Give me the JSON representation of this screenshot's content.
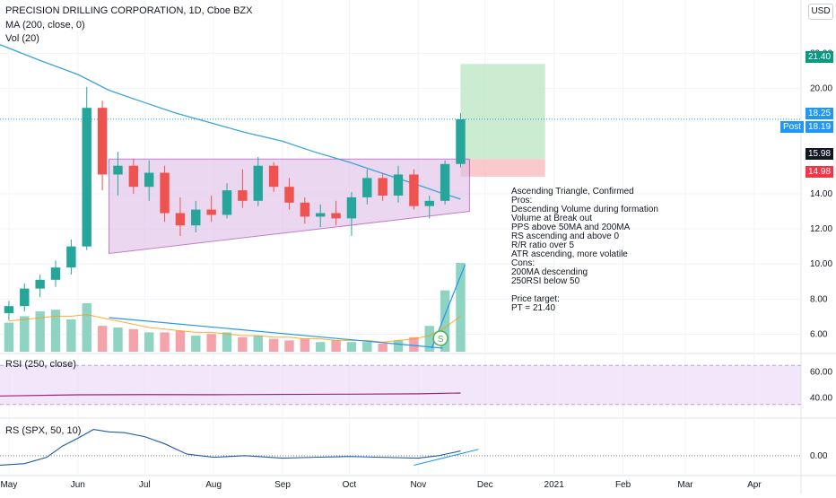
{
  "header": {
    "title": "PRECISION DRILLING CORPORATION, 1D, Cboe BZX",
    "ma_label": "MA (200, close, 0)",
    "vol_label": "Vol (20)",
    "currency": "USD"
  },
  "panes": {
    "rsi_label": "RSI (250, close)",
    "rs_label": "RS (SPX, 50, 10)"
  },
  "price_tags": {
    "target": "21.40",
    "last": "18.25",
    "post_label": "Post",
    "post_value": "18.19",
    "entry": "15.98",
    "stop": "14.98"
  },
  "notes": [
    "Ascending Triangle, Confirmed",
    "Pros:",
    "Descending Volume during formation",
    "Volume at Break out",
    "PPS above 50MA and 200MA",
    "RS ascending and above 0",
    "R/R ratio over 5",
    "ATR ascending, more volatile",
    "Cons:",
    "200MA descending",
    "250RSI below 50",
    "",
    "Price target:",
    "PT = 21.40"
  ],
  "event_marker": "S",
  "chart_data": {
    "type": "candlestick",
    "price_axis": {
      "ticks": [
        6,
        8,
        10,
        12,
        14,
        20,
        22
      ],
      "tick_labels": [
        "6.00",
        "8.00",
        "10.00",
        "12.00",
        "14.00",
        "20.00",
        "22.00"
      ],
      "range": [
        5,
        23
      ]
    },
    "rsi_axis": {
      "ticks": [
        40,
        60
      ],
      "tick_labels": [
        "40.00",
        "60.00"
      ],
      "range": [
        30,
        70
      ],
      "levels": [
        35,
        65
      ]
    },
    "rs_axis": {
      "ticks": [
        0
      ],
      "tick_labels": [
        "0.00"
      ],
      "range": [
        -0.25,
        0.45
      ]
    },
    "time_axis": {
      "labels": [
        "May",
        "Jun",
        "Jul",
        "Aug",
        "Sep",
        "Oct",
        "Nov",
        "Dec",
        "2021",
        "Feb",
        "Mar",
        "Apr"
      ],
      "start": "2020-04-27",
      "end": "2021-04-22"
    },
    "ohlc": [
      [
        "2020-05-01",
        7.2,
        7.9,
        6.8,
        7.6
      ],
      [
        "2020-05-08",
        7.6,
        8.9,
        7.3,
        8.6
      ],
      [
        "2020-05-15",
        8.6,
        9.4,
        8.1,
        9.1
      ],
      [
        "2020-05-22",
        9.1,
        10.2,
        8.7,
        9.8
      ],
      [
        "2020-05-29",
        9.8,
        11.4,
        9.4,
        11.0
      ],
      [
        "2020-06-05",
        11.0,
        20.1,
        10.8,
        18.9
      ],
      [
        "2020-06-12",
        18.9,
        19.3,
        14.2,
        15.1
      ],
      [
        "2020-06-19",
        15.1,
        16.4,
        13.9,
        15.6
      ],
      [
        "2020-06-26",
        15.6,
        16.0,
        14.0,
        14.4
      ],
      [
        "2020-07-03",
        14.4,
        15.9,
        13.6,
        15.2
      ],
      [
        "2020-07-10",
        15.2,
        15.6,
        12.4,
        12.9
      ],
      [
        "2020-07-17",
        12.9,
        13.8,
        11.6,
        12.2
      ],
      [
        "2020-07-24",
        12.2,
        13.6,
        11.8,
        13.1
      ],
      [
        "2020-07-31",
        13.1,
        13.9,
        12.4,
        12.8
      ],
      [
        "2020-08-07",
        12.8,
        14.6,
        12.6,
        14.2
      ],
      [
        "2020-08-14",
        14.2,
        15.4,
        13.2,
        13.6
      ],
      [
        "2020-08-21",
        13.6,
        16.1,
        13.3,
        15.6
      ],
      [
        "2020-08-28",
        15.6,
        15.8,
        14.1,
        14.4
      ],
      [
        "2020-09-04",
        14.4,
        14.9,
        13.1,
        13.5
      ],
      [
        "2020-09-11",
        13.5,
        13.8,
        12.3,
        12.7
      ],
      [
        "2020-09-18",
        12.7,
        13.4,
        12.1,
        12.9
      ],
      [
        "2020-09-25",
        12.9,
        13.6,
        12.2,
        12.6
      ],
      [
        "2020-10-02",
        12.6,
        14.1,
        11.6,
        13.8
      ],
      [
        "2020-10-09",
        13.8,
        15.4,
        13.4,
        14.9
      ],
      [
        "2020-10-16",
        14.9,
        15.2,
        13.6,
        13.9
      ],
      [
        "2020-10-23",
        13.9,
        15.6,
        13.5,
        15.1
      ],
      [
        "2020-10-30",
        15.1,
        15.4,
        13.1,
        13.3
      ],
      [
        "2020-11-06",
        13.3,
        13.9,
        12.6,
        13.6
      ],
      [
        "2020-11-13",
        13.6,
        15.9,
        13.4,
        15.7
      ],
      [
        "2020-11-20",
        15.7,
        18.6,
        15.5,
        18.25
      ]
    ],
    "ma200": [
      [
        "2020-04-27",
        22.5
      ],
      [
        "2020-05-15",
        21.6
      ],
      [
        "2020-06-01",
        20.8
      ],
      [
        "2020-06-15",
        19.9
      ],
      [
        "2020-07-01",
        19.2
      ],
      [
        "2020-07-15",
        18.6
      ],
      [
        "2020-08-01",
        18.0
      ],
      [
        "2020-08-15",
        17.5
      ],
      [
        "2020-09-01",
        17.0
      ],
      [
        "2020-09-15",
        16.4
      ],
      [
        "2020-10-01",
        15.8
      ],
      [
        "2020-10-15",
        15.2
      ],
      [
        "2020-11-01",
        14.5
      ],
      [
        "2020-11-10",
        14.1
      ],
      [
        "2020-11-20",
        13.7
      ]
    ],
    "volume": {
      "values": [
        0.18,
        0.22,
        0.25,
        0.26,
        0.2,
        0.3,
        0.16,
        0.15,
        0.14,
        0.12,
        0.12,
        0.13,
        0.1,
        0.11,
        0.12,
        0.09,
        0.1,
        0.08,
        0.07,
        0.08,
        0.06,
        0.07,
        0.06,
        0.06,
        0.05,
        0.07,
        0.09,
        0.16,
        0.38,
        0.55
      ],
      "ma": [
        0.19,
        0.2,
        0.21,
        0.22,
        0.22,
        0.23,
        0.21,
        0.19,
        0.17,
        0.15,
        0.14,
        0.13,
        0.12,
        0.12,
        0.11,
        0.1,
        0.1,
        0.09,
        0.09,
        0.08,
        0.08,
        0.07,
        0.07,
        0.07,
        0.06,
        0.07,
        0.08,
        0.1,
        0.15,
        0.22
      ]
    },
    "rsi": [
      [
        "2020-04-27",
        41.5
      ],
      [
        "2020-06-01",
        42.4
      ],
      [
        "2020-07-01",
        42.6
      ],
      [
        "2020-08-01",
        42.5
      ],
      [
        "2020-09-01",
        42.7
      ],
      [
        "2020-10-01",
        42.9
      ],
      [
        "2020-11-01",
        43.2
      ],
      [
        "2020-11-20",
        43.8
      ]
    ],
    "rs": [
      [
        "2020-04-27",
        -0.12
      ],
      [
        "2020-05-08",
        -0.1
      ],
      [
        "2020-05-18",
        -0.02
      ],
      [
        "2020-05-25",
        0.12
      ],
      [
        "2020-06-01",
        0.22
      ],
      [
        "2020-06-08",
        0.33
      ],
      [
        "2020-06-15",
        0.3
      ],
      [
        "2020-06-22",
        0.29
      ],
      [
        "2020-07-01",
        0.24
      ],
      [
        "2020-07-10",
        0.15
      ],
      [
        "2020-07-20",
        0.02
      ],
      [
        "2020-08-01",
        -0.02
      ],
      [
        "2020-08-15",
        0.0
      ],
      [
        "2020-09-01",
        -0.03
      ],
      [
        "2020-09-15",
        -0.02
      ],
      [
        "2020-10-01",
        -0.01
      ],
      [
        "2020-10-15",
        -0.02
      ],
      [
        "2020-11-01",
        -0.03
      ],
      [
        "2020-11-10",
        0.0
      ],
      [
        "2020-11-20",
        0.06
      ]
    ],
    "drawings": {
      "triangle_resistance": 15.98,
      "triangle_start": [
        "2020-06-15",
        10.6
      ],
      "triangle_end": [
        "2020-11-24",
        13.0
      ],
      "triangle_top_start": "2020-06-15",
      "triangle_top_end": "2020-11-24",
      "target_zone": [
        15.98,
        21.4
      ],
      "stop_zone": [
        14.98,
        15.98
      ],
      "zone_time": [
        "2020-11-20",
        "2020-12-28"
      ]
    }
  }
}
